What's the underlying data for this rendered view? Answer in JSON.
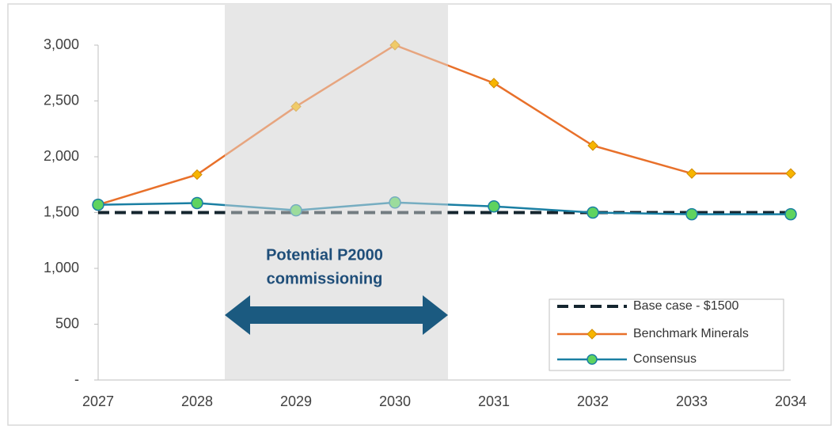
{
  "chart_data": {
    "type": "line",
    "categories": [
      "2027",
      "2028",
      "2029",
      "2030",
      "2031",
      "2032",
      "2033",
      "2034"
    ],
    "series": [
      {
        "name": "Base case - $1500",
        "color": "#15262f",
        "values": [
          1500,
          1500,
          1500,
          1500,
          1500,
          1500,
          1500,
          1500
        ]
      },
      {
        "name": "Benchmark Minerals",
        "color": "#e8702a",
        "marker_color": "#f7b500",
        "values": [
          1570,
          1840,
          2450,
          3000,
          2660,
          2100,
          1850,
          1850
        ]
      },
      {
        "name": "Consensus",
        "color": "#1a7fa3",
        "marker_color": "#5fd35f",
        "values": [
          1570,
          1585,
          1520,
          1590,
          1555,
          1500,
          1485,
          1485
        ]
      }
    ],
    "ylim": [
      0,
      3000
    ],
    "yticks": [
      {
        "value": 0,
        "label": "-"
      },
      500,
      {
        "value": 1000,
        "label": "1,000"
      },
      {
        "value": 1500,
        "label": "1,500"
      },
      {
        "value": 2000,
        "label": "2,000"
      },
      {
        "value": 2500,
        "label": "2,500"
      },
      {
        "value": 3000,
        "label": "3,000"
      }
    ],
    "annotation": [
      "Potential P2000",
      "commissioning"
    ],
    "legend": "lower right"
  }
}
